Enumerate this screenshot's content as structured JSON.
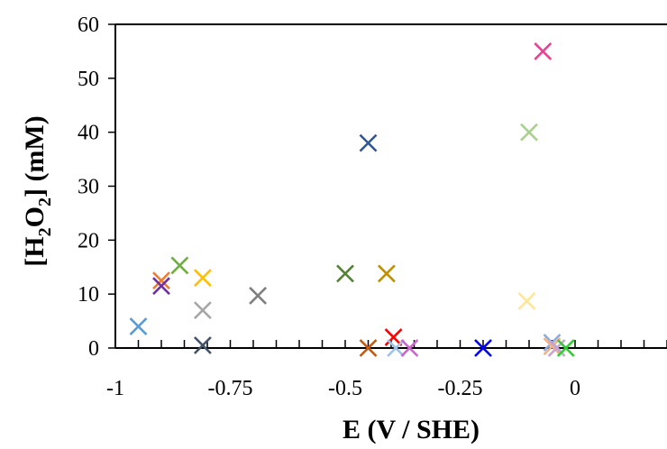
{
  "chart_data": {
    "type": "scatter",
    "xlabel": "E (V / SHE)",
    "ylabel_parts": {
      "open": "[H",
      "sub1": "2",
      "mid": "O",
      "sub2": "2",
      "close": "] (mM)"
    },
    "xlim": [
      -1,
      0.2
    ],
    "ylim": [
      0,
      60
    ],
    "x_ticks": [
      -1,
      -0.75,
      -0.5,
      -0.25,
      0
    ],
    "x_tick_labels": [
      "-1",
      "-0.75",
      "-0.5",
      "-0.25",
      "0"
    ],
    "x_minor_step": 0.05,
    "y_ticks": [
      0,
      10,
      20,
      30,
      40,
      50,
      60
    ],
    "y_tick_labels": [
      "0",
      "10",
      "20",
      "30",
      "40",
      "50",
      "60"
    ],
    "grid": false,
    "legend": "none",
    "marker": "x",
    "points": [
      {
        "x": -0.95,
        "y": 4,
        "color": "#5b9bd5"
      },
      {
        "x": -0.9,
        "y": 12.5,
        "color": "#ed7d31"
      },
      {
        "x": -0.9,
        "y": 11.5,
        "color": "#7030a0"
      },
      {
        "x": -0.86,
        "y": 15.3,
        "color": "#70ad47"
      },
      {
        "x": -0.81,
        "y": 13,
        "color": "#ffc000"
      },
      {
        "x": -0.81,
        "y": 7,
        "color": "#a5a5a5"
      },
      {
        "x": -0.81,
        "y": 0.5,
        "color": "#44546a"
      },
      {
        "x": -0.69,
        "y": 9.7,
        "color": "#7f7f7f"
      },
      {
        "x": -0.5,
        "y": 13.8,
        "color": "#548235"
      },
      {
        "x": -0.45,
        "y": 38,
        "color": "#2f5597"
      },
      {
        "x": -0.45,
        "y": 0,
        "color": "#c55a11"
      },
      {
        "x": -0.41,
        "y": 13.8,
        "color": "#bf9000"
      },
      {
        "x": -0.395,
        "y": 2,
        "color": "#ff0000"
      },
      {
        "x": -0.39,
        "y": 0,
        "color": "#9dc3e6"
      },
      {
        "x": -0.36,
        "y": 0,
        "color": "#cc66cc"
      },
      {
        "x": -0.2,
        "y": 0,
        "color": "#0000ff"
      },
      {
        "x": -0.105,
        "y": 8.7,
        "color": "#ffe699"
      },
      {
        "x": -0.1,
        "y": 40,
        "color": "#a9d18e"
      },
      {
        "x": -0.07,
        "y": 55,
        "color": "#e84393"
      },
      {
        "x": -0.05,
        "y": 1,
        "color": "#8faadc"
      },
      {
        "x": -0.05,
        "y": 0.3,
        "color": "#f4b183"
      },
      {
        "x": -0.04,
        "y": 0,
        "color": "#c5a5cf"
      },
      {
        "x": -0.02,
        "y": 0,
        "color": "#33cc33"
      }
    ]
  }
}
